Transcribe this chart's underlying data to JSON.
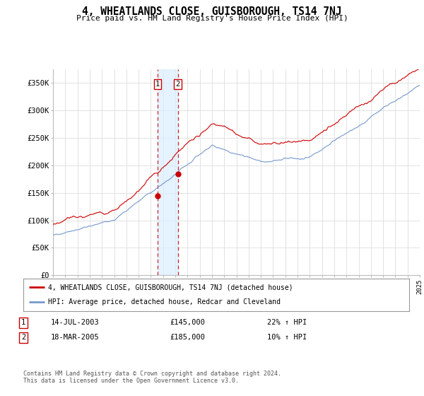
{
  "title": "4, WHEATLANDS CLOSE, GUISBOROUGH, TS14 7NJ",
  "subtitle": "Price paid vs. HM Land Registry's House Price Index (HPI)",
  "x_start_year": 1995,
  "x_end_year": 2025,
  "y_ticks": [
    0,
    50000,
    100000,
    150000,
    200000,
    250000,
    300000,
    350000
  ],
  "y_tick_labels": [
    "£0",
    "£50K",
    "£100K",
    "£150K",
    "£200K",
    "£250K",
    "£300K",
    "£350K"
  ],
  "red_line_color": "#cc0000",
  "blue_line_color": "#7799cc",
  "purchase1_date": 2003.54,
  "purchase1_price": 145000,
  "purchase2_date": 2005.21,
  "purchase2_price": 185000,
  "legend_red": "4, WHEATLANDS CLOSE, GUISBOROUGH, TS14 7NJ (detached house)",
  "legend_blue": "HPI: Average price, detached house, Redcar and Cleveland",
  "table_row1_label": "1",
  "table_row1_date": "14-JUL-2003",
  "table_row1_price": "£145,000",
  "table_row1_hpi": "22% ↑ HPI",
  "table_row2_label": "2",
  "table_row2_date": "18-MAR-2005",
  "table_row2_price": "£185,000",
  "table_row2_hpi": "10% ↑ HPI",
  "footer": "Contains HM Land Registry data © Crown copyright and database right 2024.\nThis data is licensed under the Open Government Licence v3.0.",
  "bg_color": "#ffffff",
  "grid_color": "#dddddd",
  "highlight_bg": "#ddeeff"
}
